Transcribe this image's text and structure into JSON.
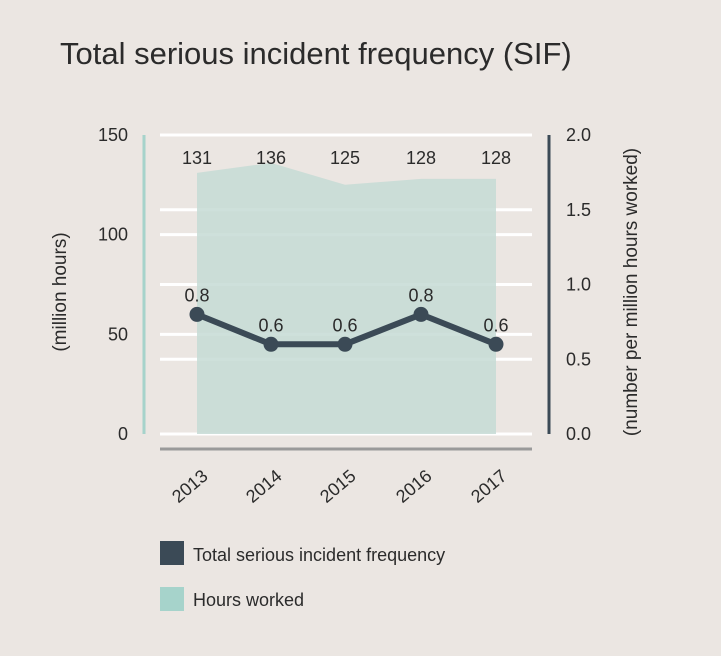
{
  "chart_data": {
    "type": "area+line (dual axis)",
    "title": "Total serious incident frequency (SIF)",
    "categories": [
      "2013",
      "2014",
      "2015",
      "2016",
      "2017"
    ],
    "y_left": {
      "label": "(million hours)",
      "range": [
        0,
        150
      ],
      "ticks": [
        "0",
        "50",
        "100",
        "150"
      ]
    },
    "y_right": {
      "label": "(number per million hours worked)",
      "range": [
        0,
        2.0
      ],
      "ticks": [
        "0.0",
        "0.5",
        "1.0",
        "1.5",
        "2.0"
      ]
    },
    "series": [
      {
        "name": "Hours worked",
        "type": "area",
        "axis": "left",
        "values": [
          131,
          136,
          125,
          128,
          128
        ],
        "labels": [
          "131",
          "136",
          "125",
          "128",
          "128"
        ],
        "color": "#c6dbd5"
      },
      {
        "name": "Total serious incident frequency",
        "type": "line",
        "axis": "right",
        "values": [
          0.8,
          0.6,
          0.6,
          0.8,
          0.6
        ],
        "labels": [
          "0.8",
          "0.6",
          "0.6",
          "0.8",
          "0.6"
        ],
        "color": "#3b4a56"
      }
    ],
    "legend": [
      {
        "label": "Total serious incident frequency",
        "color": "#3b4a56"
      },
      {
        "label": "Hours worked",
        "color": "#a6d3cb"
      }
    ],
    "grid": true
  }
}
